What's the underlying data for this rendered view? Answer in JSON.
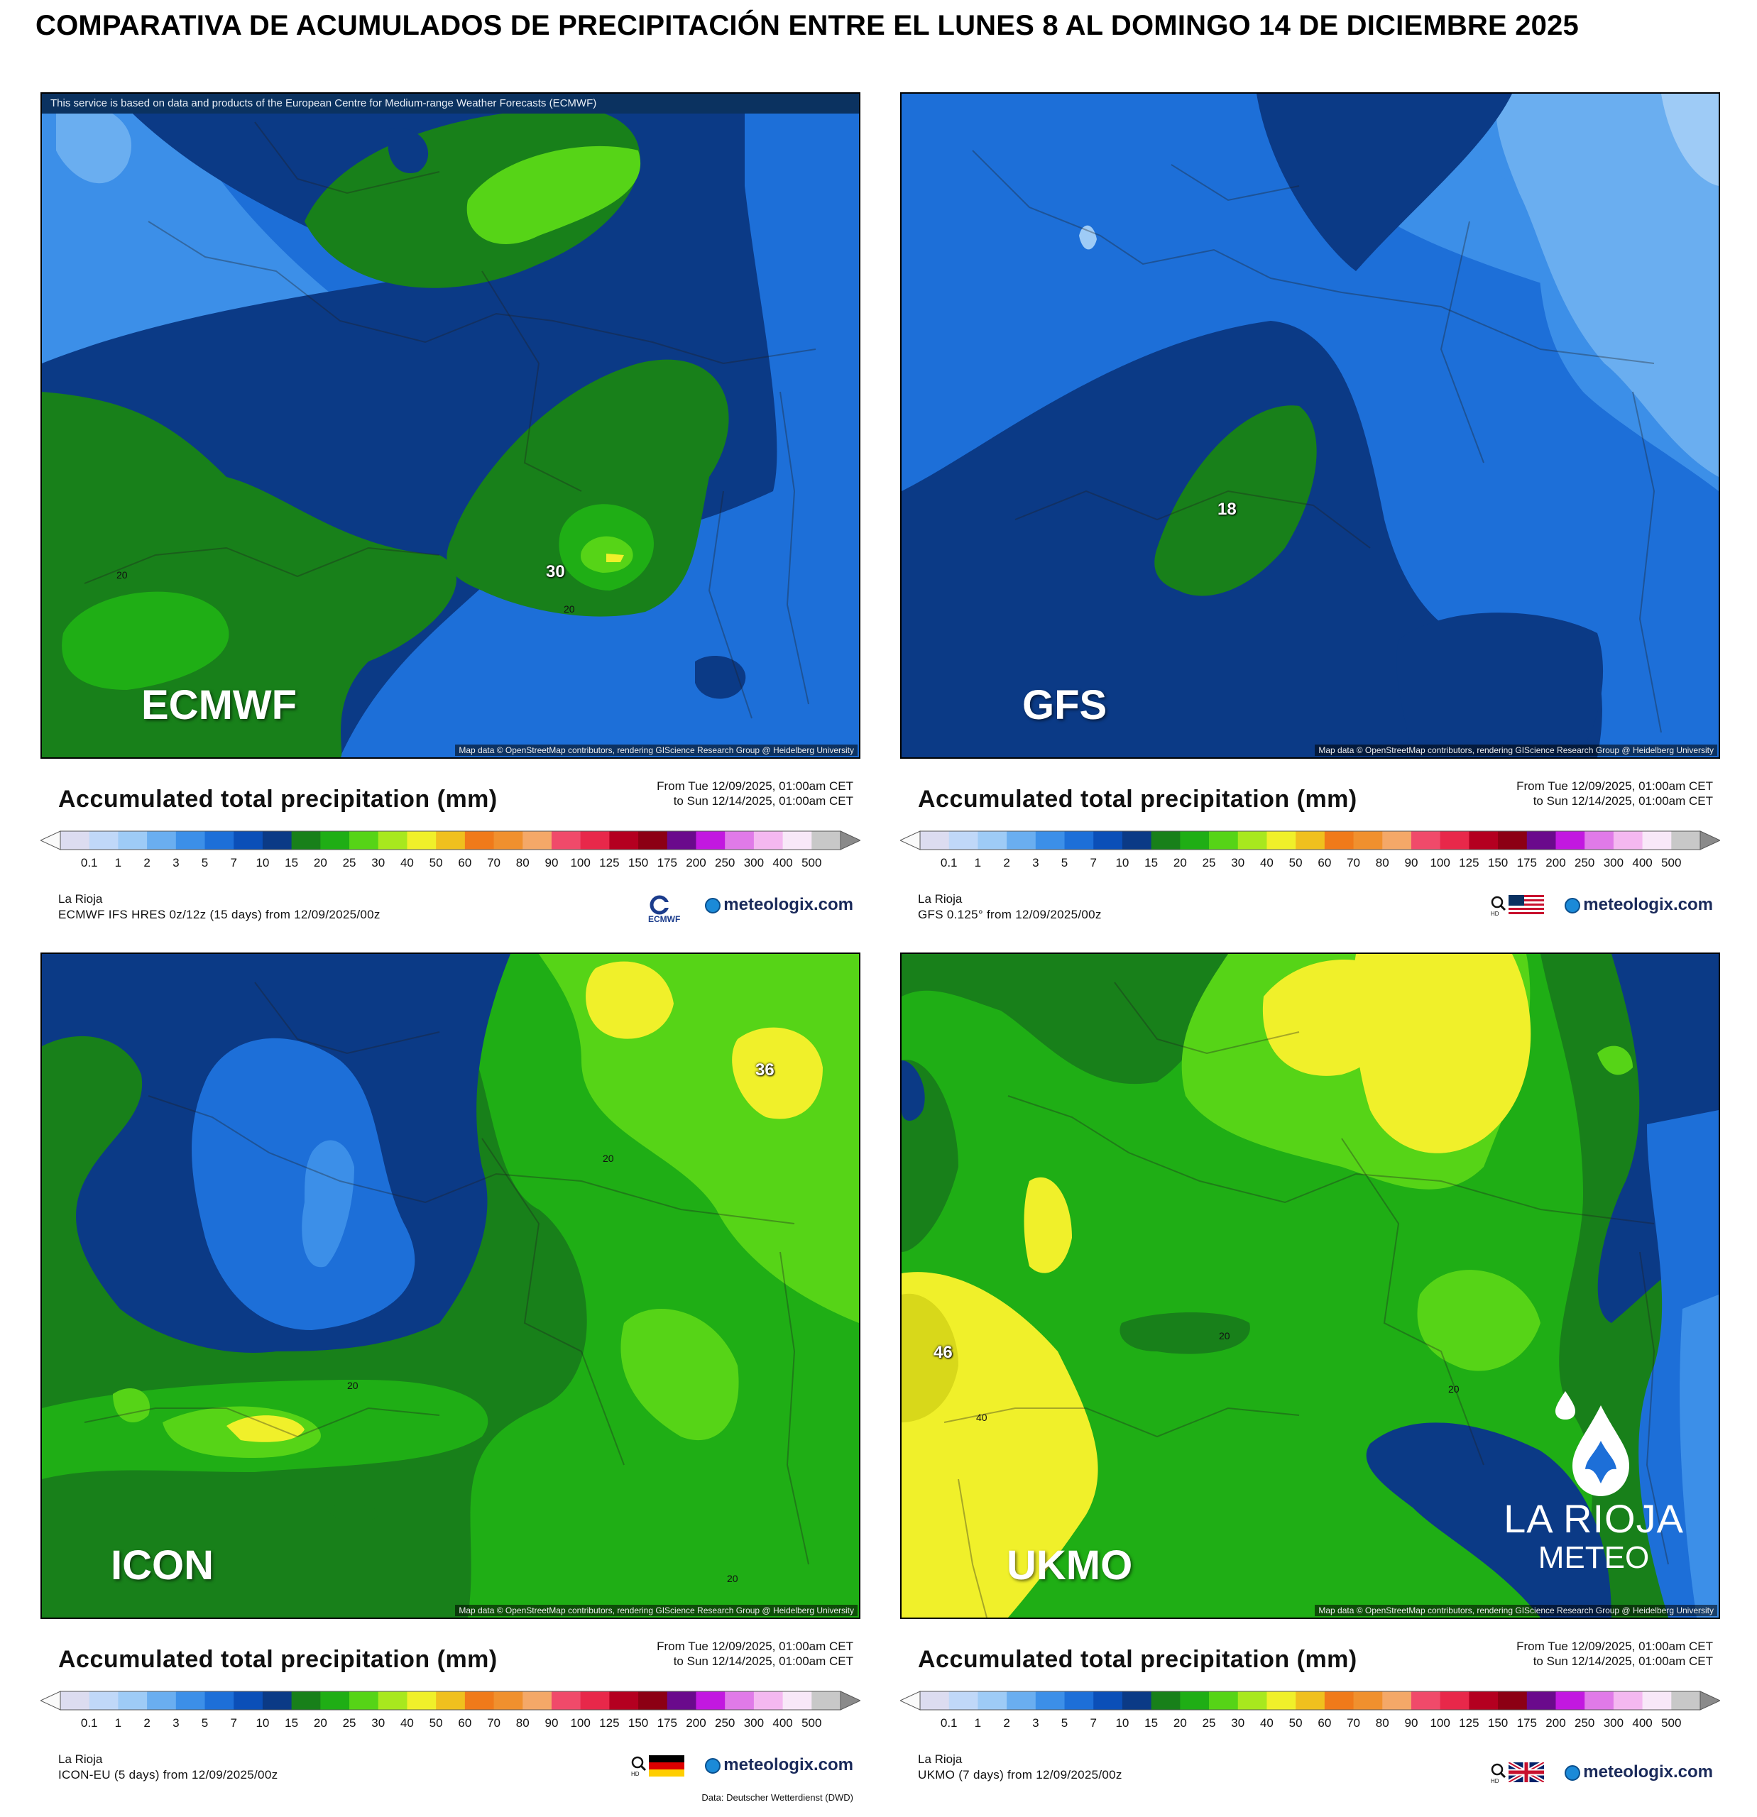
{
  "title": "COMPARATIVA DE ACUMULADOS DE PRECIPITACIÓN ENTRE EL LUNES 8 AL DOMINGO 14 DE DICIEMBRE 2025",
  "ecmwf_notice": "This service is based on data and products of the European Centre for Medium-range Weather Forecasts (ECMWF)",
  "map_credit": "Map data © OpenStreetMap contributors, rendering GIScience Research Group @ Heidelberg University",
  "legend": {
    "title": "Accumulated total precipitation (mm)",
    "from": "From Tue 12/09/2025, 01:00am CET",
    "to": "to Sun 12/14/2025, 01:00am CET",
    "region": "La Rioja",
    "ticks": [
      "0.1",
      "1",
      "2",
      "3",
      "5",
      "7",
      "10",
      "15",
      "20",
      "25",
      "30",
      "40",
      "50",
      "60",
      "70",
      "80",
      "90",
      "100",
      "125",
      "150",
      "175",
      "200",
      "250",
      "300",
      "400",
      "500"
    ],
    "colors": [
      "#dcdcf0",
      "#c0d8f8",
      "#9ecbf6",
      "#6aaef0",
      "#3c8fe8",
      "#1d6fd8",
      "#0b4fb8",
      "#0b3a86",
      "#18801a",
      "#1fae15",
      "#56d417",
      "#a8e81e",
      "#f0f02a",
      "#f0c01e",
      "#f07a1a",
      "#f0902e",
      "#f4a868",
      "#f04a6a",
      "#e8284a",
      "#b40020",
      "#8c0014",
      "#6a0a8c",
      "#c218e0",
      "#e07ae8",
      "#f4b8f0",
      "#f8e8f8",
      "#c8c8c8"
    ],
    "brand": "meteologix.com"
  },
  "panels": [
    {
      "id": "ecmwf",
      "label": "ECMWF",
      "source": "ECMWF IFS HRES 0z/12z (15 days) from 12/09/2025/00z",
      "max_value": "30",
      "iso_labels": [
        "20",
        "20"
      ]
    },
    {
      "id": "gfs",
      "label": "GFS",
      "source": "GFS 0.125° from 12/09/2025/00z",
      "max_value": "18",
      "iso_labels": []
    },
    {
      "id": "icon",
      "label": "ICON",
      "source": "ICON-EU (5 days) from 12/09/2025/00z",
      "max_value": "36",
      "iso_labels": [
        "20",
        "20",
        "20"
      ],
      "data_credit": "Data: Deutscher Wetterdienst (DWD)"
    },
    {
      "id": "ukmo",
      "label": "UKMO",
      "source": "UKMO (7 days) from 12/09/2025/00z",
      "max_value": "46",
      "iso_labels": [
        "40",
        "20",
        "20"
      ]
    }
  ],
  "watermark": {
    "line1": "LA RIOJA",
    "line2": "METEO"
  }
}
